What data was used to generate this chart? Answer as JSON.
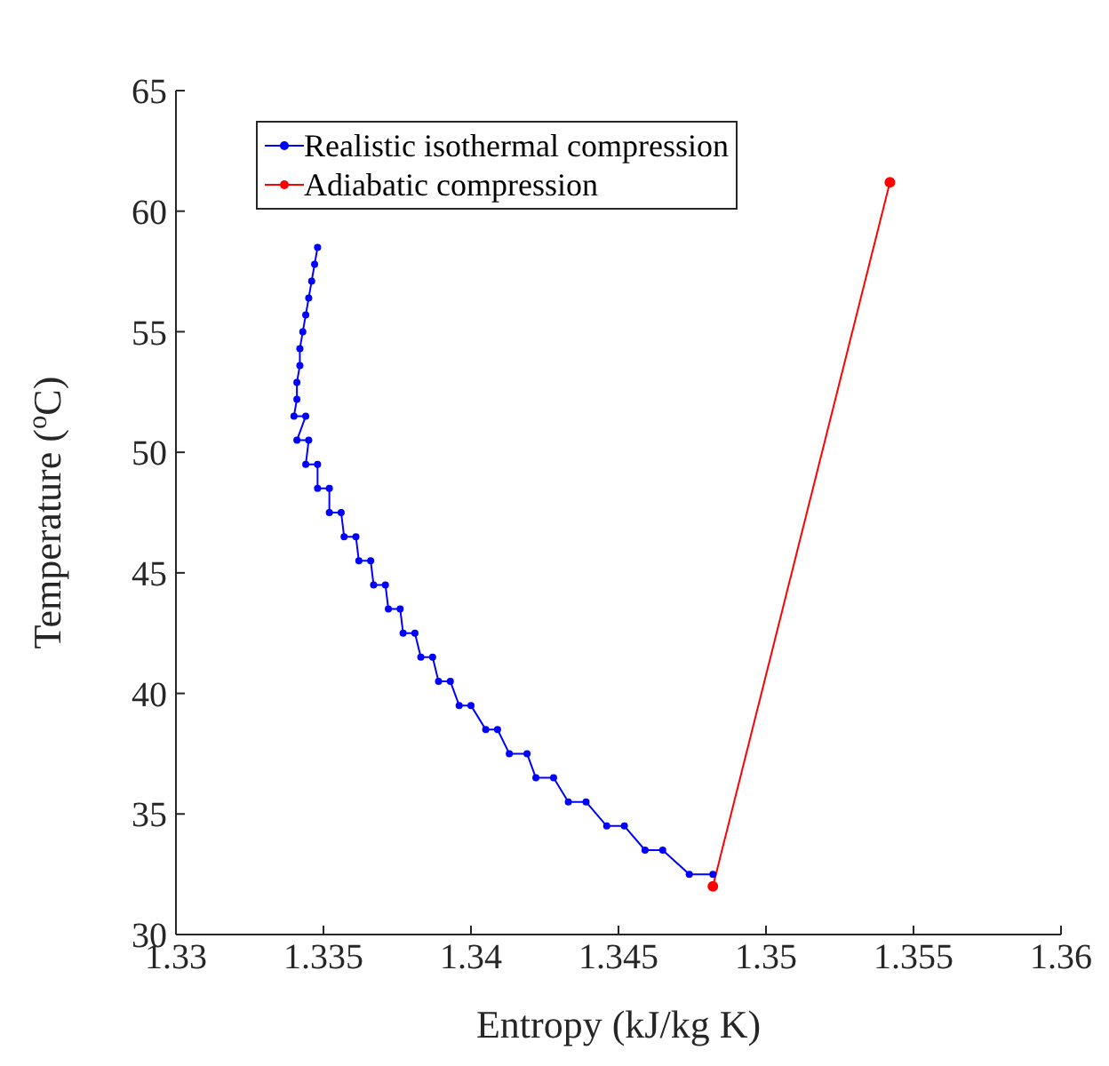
{
  "chart_data": {
    "type": "line",
    "xlabel": "Entropy (kJ/kg K)",
    "ylabel": "Temperature ($^{o}$C)",
    "xlim": [
      1.33,
      1.36
    ],
    "xticks": [
      1.33,
      1.335,
      1.34,
      1.345,
      1.35,
      1.355,
      1.36
    ],
    "ylim": [
      30,
      65
    ],
    "yticks": [
      30,
      35,
      40,
      45,
      50,
      55,
      60,
      65
    ],
    "grid": false,
    "legend": "top left",
    "marker": "circle",
    "series": [
      {
        "name": "Realistic isothermal compression",
        "color": "#0000ff",
        "x": [
          1.3348,
          1.3347,
          1.3346,
          1.3345,
          1.3344,
          1.3343,
          1.3342,
          1.3342,
          1.3341,
          1.3341,
          1.334,
          1.3344,
          1.3341,
          1.3345,
          1.3344,
          1.3348,
          1.3348,
          1.3352,
          1.3352,
          1.3356,
          1.3357,
          1.3361,
          1.3362,
          1.3366,
          1.3367,
          1.3371,
          1.3372,
          1.3376,
          1.3377,
          1.3381,
          1.3383,
          1.3387,
          1.3389,
          1.3393,
          1.3396,
          1.34,
          1.3405,
          1.3409,
          1.3413,
          1.3419,
          1.3422,
          1.3428,
          1.3433,
          1.3439,
          1.3446,
          1.3452,
          1.3459,
          1.3465,
          1.3474,
          1.3482
        ],
        "values": [
          58.5,
          57.8,
          57.1,
          56.4,
          55.7,
          55,
          54.3,
          53.6,
          52.9,
          52.2,
          51.5,
          51.5,
          50.5,
          50.5,
          49.5,
          49.5,
          48.5,
          48.5,
          47.5,
          47.5,
          46.5,
          46.5,
          45.5,
          45.5,
          44.5,
          44.5,
          43.5,
          43.5,
          42.5,
          42.5,
          41.5,
          41.5,
          40.5,
          40.5,
          39.5,
          39.5,
          38.5,
          38.5,
          37.5,
          37.5,
          36.5,
          36.5,
          35.5,
          35.5,
          34.5,
          34.5,
          33.5,
          33.5,
          32.5,
          32.5
        ]
      },
      {
        "name": "Adiabatic compression",
        "color": "#ff0000",
        "x": [
          1.3482,
          1.3542
        ],
        "values": [
          32,
          61.2
        ]
      }
    ]
  }
}
